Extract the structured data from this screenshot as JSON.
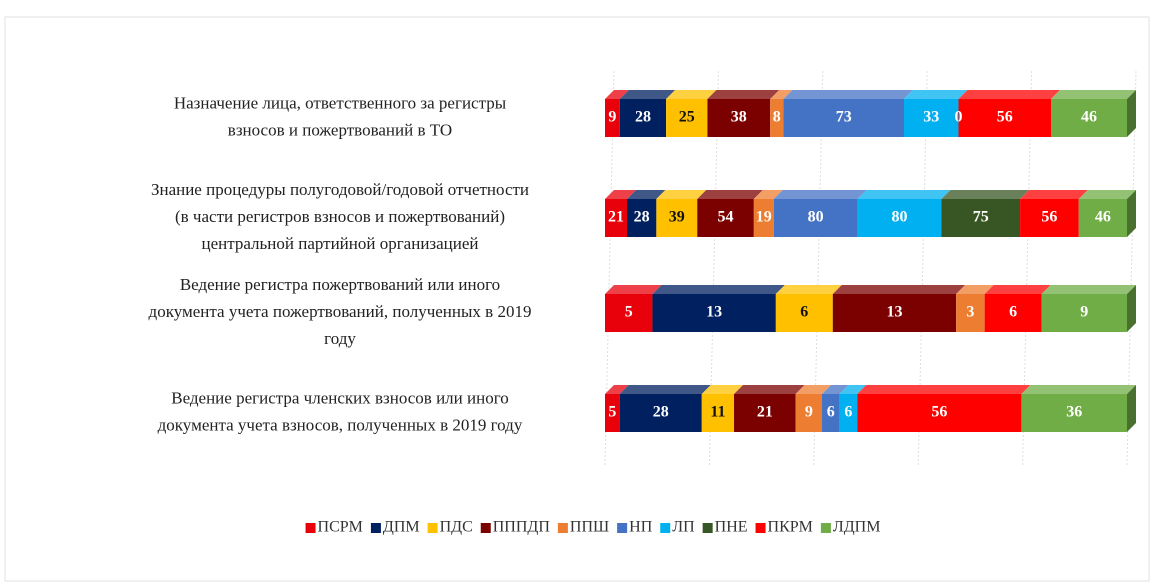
{
  "chart_data": {
    "type": "stacked-bar-100",
    "categories": [
      [
        "Назначение лица, ответственного за регистры",
        "взносов и пожертвований в ТО"
      ],
      [
        "Знание процедуры полугодовой/годовой отчетности",
        "(в части регистров взносов и пожертвований)",
        "центральной партийной организацией"
      ],
      [
        "Ведение регистра пожертвований или иного",
        "документа учета пожертвований, полученных в 2019",
        "году"
      ],
      [
        "Ведение регистра членских взносов или иного",
        "документа учета взносов, полученных в 2019 году"
      ]
    ],
    "series": [
      {
        "name": "ПСРМ",
        "color": "#e8000b",
        "values": [
          9,
          21,
          5,
          5
        ]
      },
      {
        "name": "ДПМ",
        "color": "#002060",
        "values": [
          28,
          28,
          13,
          28
        ]
      },
      {
        "name": "ПДС",
        "color": "#ffc000",
        "values": [
          25,
          39,
          6,
          11
        ]
      },
      {
        "name": "ПППДП",
        "color": "#7b0000",
        "values": [
          38,
          54,
          13,
          21
        ]
      },
      {
        "name": "ППШ",
        "color": "#ed7d31",
        "values": [
          8,
          19,
          3,
          9
        ]
      },
      {
        "name": "НП",
        "color": "#4472c4",
        "values": [
          73,
          80,
          null,
          6
        ]
      },
      {
        "name": "ЛП",
        "color": "#00b0f0",
        "values": [
          33,
          80,
          null,
          6
        ]
      },
      {
        "name": "ПНЕ",
        "color": "#375623",
        "values": [
          0,
          75,
          null,
          null
        ]
      },
      {
        "name": "ПКРМ",
        "color": "#ff0000",
        "values": [
          56,
          56,
          6,
          56
        ]
      },
      {
        "name": "ЛДПМ",
        "color": "#70ad47",
        "values": [
          46,
          46,
          9,
          36
        ]
      }
    ]
  }
}
